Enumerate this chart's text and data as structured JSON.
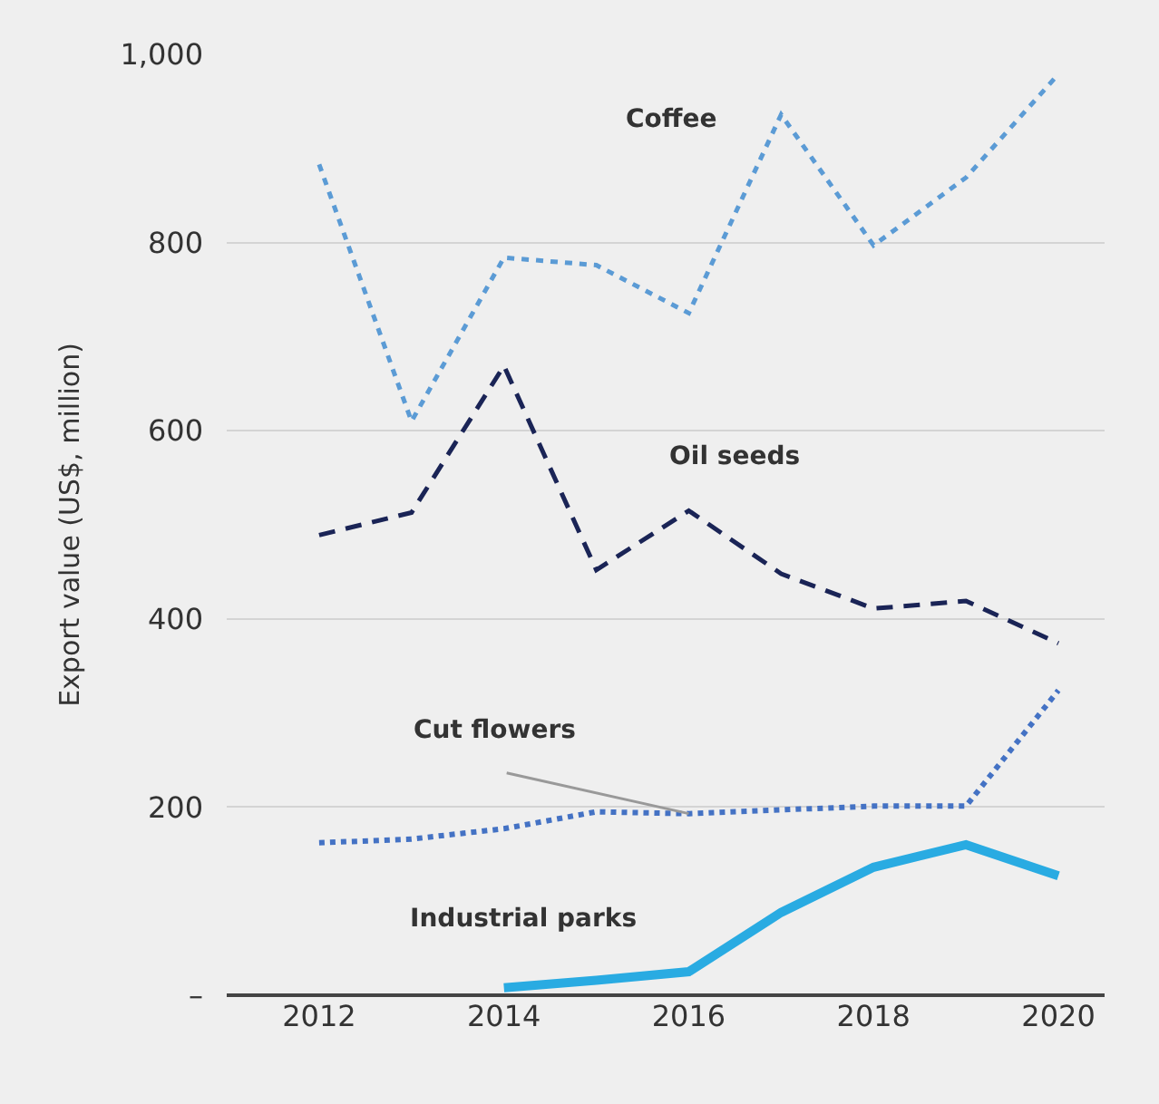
{
  "chart_data": {
    "type": "line",
    "ylabel": "Export value (US$, million)",
    "x": [
      2012,
      2013,
      2014,
      2015,
      2016,
      2017,
      2018,
      2019,
      2020
    ],
    "series": [
      {
        "name": "Coffee",
        "color": "#5b9bd5",
        "line_style": "dashed",
        "values": [
          883,
          610,
          784,
          776,
          725,
          936,
          797,
          869,
          979
        ]
      },
      {
        "name": "Oil seeds",
        "color": "#1a2456",
        "line_style": "dashed",
        "values": [
          489,
          513,
          669,
          452,
          515,
          448,
          411,
          419,
          374
        ]
      },
      {
        "name": "Cut flowers",
        "color": "#4472c4",
        "line_style": "dotted",
        "values": [
          162,
          166,
          177,
          195,
          193,
          197,
          201,
          201,
          324
        ]
      },
      {
        "name": "Industrial parks",
        "color": "#29abe2",
        "line_style": "solid",
        "values": [
          null,
          null,
          8,
          16,
          25,
          88,
          136,
          160,
          127
        ]
      }
    ],
    "xlim": [
      2011,
      2020.5
    ],
    "xticks": [
      2012,
      2014,
      2016,
      2018,
      2020
    ],
    "ylim": [
      0,
      1000
    ],
    "yticks": [
      {
        "value": 0,
        "label": "–"
      },
      200,
      400,
      600,
      800,
      {
        "value": 1000,
        "label": "1,000"
      }
    ],
    "grid": "y",
    "legend": false,
    "marker": "none"
  }
}
